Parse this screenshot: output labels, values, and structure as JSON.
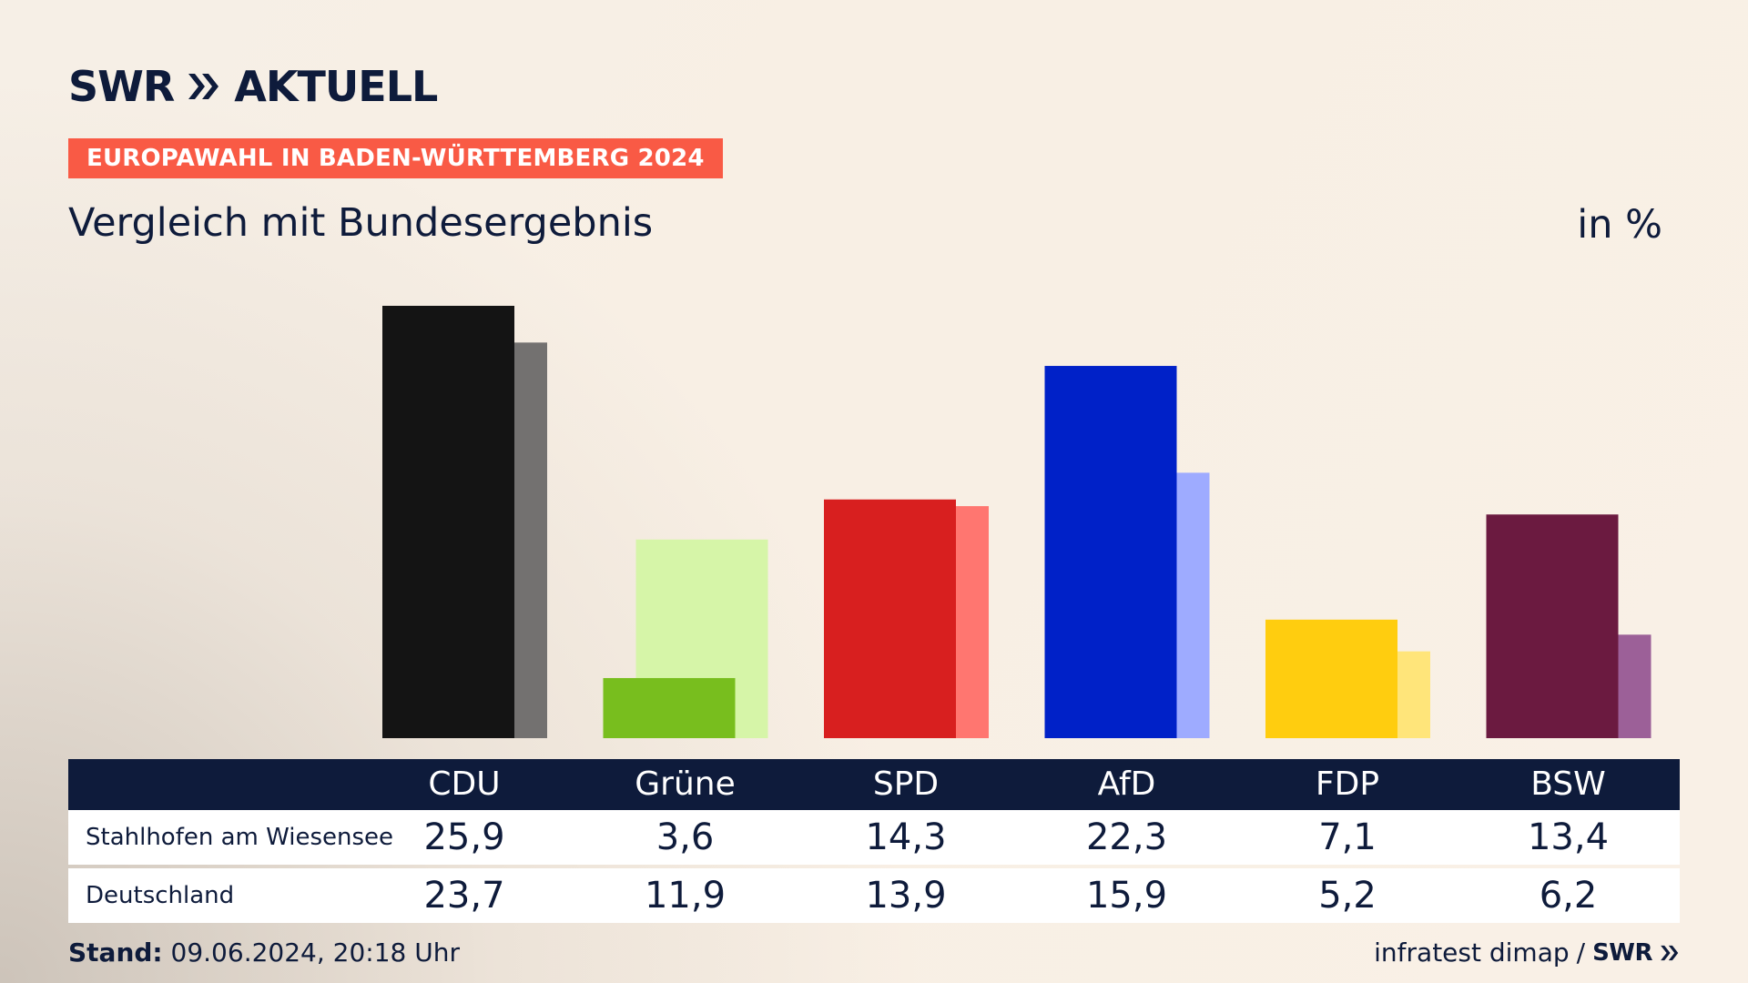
{
  "brand": {
    "name": "SWR",
    "product": "AKTUELL"
  },
  "ribbon": "EUROPAWAHL IN BADEN-WÜRTTEMBERG 2024",
  "subtitle": "Vergleich mit Bundesergebnis",
  "unit": "in %",
  "table": {
    "headers": [
      "CDU",
      "Grüne",
      "SPD",
      "AfD",
      "FDP",
      "BSW"
    ],
    "rows": [
      {
        "label": "Stahlhofen am Wiesensee",
        "values": [
          "25,9",
          "3,6",
          "14,3",
          "22,3",
          "7,1",
          "13,4"
        ]
      },
      {
        "label": "Deutschland",
        "values": [
          "23,7",
          "11,9",
          "13,9",
          "15,9",
          "5,2",
          "6,2"
        ]
      }
    ]
  },
  "footer": {
    "stand_label": "Stand:",
    "stand_value": "09.06.2024, 20:18 Uhr",
    "source": "infratest dimap",
    "separator": "/",
    "logo": "SWR"
  },
  "colors": {
    "navy": "#0e1b3b",
    "ribbon": "#f95a45",
    "background": "#f8efe4",
    "primary": [
      "#141414",
      "#78be1e",
      "#d81f1f",
      "#0021c8",
      "#ffcd0f",
      "#6b1a40"
    ],
    "secondary": [
      "#737170",
      "#d6f5a8",
      "#ff7670",
      "#9eabff",
      "#ffe57a",
      "#9c6098"
    ]
  },
  "chart_data": {
    "type": "bar",
    "categories": [
      "CDU",
      "Grüne",
      "SPD",
      "AfD",
      "FDP",
      "BSW"
    ],
    "series": [
      {
        "name": "Stahlhofen am Wiesensee",
        "values": [
          25.9,
          3.6,
          14.3,
          22.3,
          7.1,
          13.4
        ]
      },
      {
        "name": "Deutschland",
        "values": [
          23.7,
          11.9,
          13.9,
          15.9,
          5.2,
          6.2
        ]
      }
    ],
    "ylim": [
      0,
      25.9
    ],
    "grid": false,
    "legend": "table-below"
  }
}
